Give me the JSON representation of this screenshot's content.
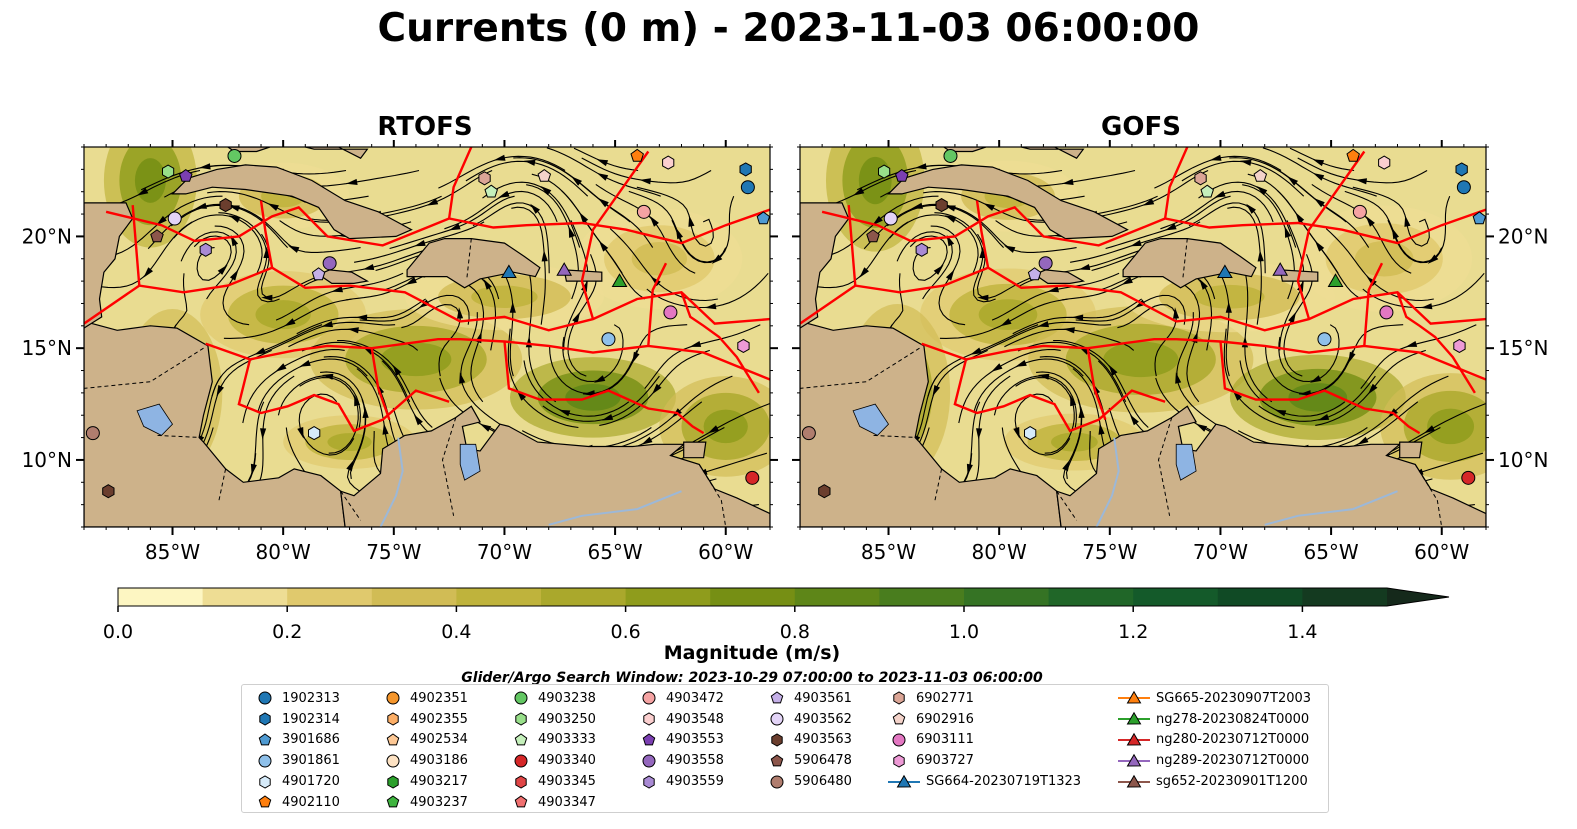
{
  "title": "Currents (0 m) - 2023-11-03 06:00:00",
  "panels": [
    {
      "title": "RTOFS"
    },
    {
      "title": "GOFS"
    }
  ],
  "map": {
    "lon_range": [
      -89,
      -58
    ],
    "lat_range": [
      7,
      24
    ],
    "lon_ticks": [
      {
        "value": -85,
        "label": "85°W"
      },
      {
        "value": -80,
        "label": "80°W"
      },
      {
        "value": -75,
        "label": "75°W"
      },
      {
        "value": -70,
        "label": "70°W"
      },
      {
        "value": -65,
        "label": "65°W"
      },
      {
        "value": -60,
        "label": "60°W"
      }
    ],
    "lat_ticks": [
      {
        "value": 20,
        "label": "20°N"
      },
      {
        "value": 15,
        "label": "15°N"
      },
      {
        "value": 10,
        "label": "10°N"
      }
    ],
    "colors": {
      "land": "#cdb28a",
      "boundaries": "#ff0000",
      "streamlines": "#000000",
      "lakes": "#8eb4e3"
    }
  },
  "colorbar": {
    "label": "Magnitude (m/s)",
    "min": 0.0,
    "max": 1.5,
    "extend": "max",
    "ticks": [
      {
        "value": 0.0,
        "label": "0.0"
      },
      {
        "value": 0.2,
        "label": "0.2"
      },
      {
        "value": 0.4,
        "label": "0.4"
      },
      {
        "value": 0.6,
        "label": "0.6"
      },
      {
        "value": 0.8,
        "label": "0.8"
      },
      {
        "value": 1.0,
        "label": "1.0"
      },
      {
        "value": 1.2,
        "label": "1.2"
      },
      {
        "value": 1.4,
        "label": "1.4"
      }
    ],
    "colors": [
      "#fdf6c2",
      "#eedd94",
      "#e0c96d",
      "#d1bc55",
      "#bfb33c",
      "#aaa82c",
      "#8f9c1c",
      "#768f14",
      "#5e8618",
      "#497d1e",
      "#357324",
      "#206628",
      "#145a2a",
      "#104a25",
      "#143a20",
      "#15291b"
    ]
  },
  "search_window": "Glider/Argo Search Window: 2023-10-29 07:00:00 to 2023-11-03 06:00:00",
  "legend": {
    "columns": [
      [
        {
          "label": "1902313",
          "marker": "circle",
          "color": "#1f77b4"
        },
        {
          "label": "1902314",
          "marker": "hexagon",
          "color": "#1f77b4"
        },
        {
          "label": "3901686",
          "marker": "pentagon",
          "color": "#4e9ad2"
        },
        {
          "label": "3901861",
          "marker": "circle",
          "color": "#8ec0ea"
        },
        {
          "label": "4901720",
          "marker": "hexagon",
          "color": "#d6ebfa"
        },
        {
          "label": "4902110",
          "marker": "pentagon",
          "color": "#ff7f0e"
        }
      ],
      [
        {
          "label": "4902351",
          "marker": "circle",
          "color": "#f5962c"
        },
        {
          "label": "4902355",
          "marker": "hexagon",
          "color": "#fcae66"
        },
        {
          "label": "4902534",
          "marker": "pentagon",
          "color": "#fdc895"
        },
        {
          "label": "4903186",
          "marker": "circle",
          "color": "#fde2c3"
        },
        {
          "label": "4903217",
          "marker": "hexagon",
          "color": "#2ca02c"
        },
        {
          "label": "4903237",
          "marker": "pentagon",
          "color": "#3fb43f"
        }
      ],
      [
        {
          "label": "4903238",
          "marker": "circle",
          "color": "#63c763"
        },
        {
          "label": "4903250",
          "marker": "hexagon",
          "color": "#98df8a"
        },
        {
          "label": "4903333",
          "marker": "pentagon",
          "color": "#c5f0bb"
        },
        {
          "label": "4903340",
          "marker": "circle",
          "color": "#d62728"
        },
        {
          "label": "4903345",
          "marker": "hexagon",
          "color": "#e04546"
        },
        {
          "label": "4903347",
          "marker": "pentagon",
          "color": "#f07070"
        }
      ],
      [
        {
          "label": "4903472",
          "marker": "circle",
          "color": "#f5a3a3"
        },
        {
          "label": "4903548",
          "marker": "hexagon",
          "color": "#fbcfcf"
        },
        {
          "label": "4903553",
          "marker": "pentagon",
          "color": "#7b3fb2"
        },
        {
          "label": "4903558",
          "marker": "circle",
          "color": "#9467bd"
        },
        {
          "label": "4903559",
          "marker": "hexagon",
          "color": "#a98ad4"
        }
      ],
      [
        {
          "label": "4903561",
          "marker": "pentagon",
          "color": "#c5b0e8"
        },
        {
          "label": "4903562",
          "marker": "circle",
          "color": "#e3d4f7"
        },
        {
          "label": "4903563",
          "marker": "hexagon",
          "color": "#6b3e2e"
        },
        {
          "label": "5906478",
          "marker": "pentagon",
          "color": "#8c564b"
        },
        {
          "label": "5906480",
          "marker": "circle",
          "color": "#b07d6e"
        }
      ],
      [
        {
          "label": "6902771",
          "marker": "hexagon",
          "color": "#dba596"
        },
        {
          "label": "6902916",
          "marker": "pentagon",
          "color": "#f4d3ca"
        },
        {
          "label": "6903111",
          "marker": "circle",
          "color": "#e377c2"
        },
        {
          "label": "6903727",
          "marker": "hexagon",
          "color": "#ee9ad6"
        },
        {
          "label": "SG664-20230719T1323",
          "marker": "triangle",
          "color": "#1f77b4",
          "line": true
        }
      ],
      [
        {
          "label": "SG665-20230907T2003",
          "marker": "triangle",
          "color": "#ff7f0e",
          "line": true
        },
        {
          "label": "ng278-20230824T0000",
          "marker": "triangle",
          "color": "#2ca02c",
          "line": true
        },
        {
          "label": "ng280-20230712T0000",
          "marker": "triangle",
          "color": "#d62728",
          "line": true
        },
        {
          "label": "ng289-20230712T0000",
          "marker": "triangle",
          "color": "#9467bd",
          "line": true
        },
        {
          "label": "sg652-20230901T1200",
          "marker": "triangle",
          "color": "#8c564b",
          "line": true
        }
      ]
    ]
  },
  "observations": [
    {
      "id": "3901686",
      "lon": -58.3,
      "lat": 20.8
    },
    {
      "id": "1902314",
      "lon": -59.1,
      "lat": 23.0
    },
    {
      "id": "1902313",
      "lon": -59.0,
      "lat": 22.2
    },
    {
      "id": "4902110",
      "lon": -64.0,
      "lat": 23.6
    },
    {
      "id": "4903548",
      "lon": -62.6,
      "lat": 23.3
    },
    {
      "id": "4903472",
      "lon": -63.7,
      "lat": 21.1
    },
    {
      "id": "6902916",
      "lon": -68.2,
      "lat": 22.7
    },
    {
      "id": "4903333",
      "lon": -70.6,
      "lat": 22.0
    },
    {
      "id": "6902771",
      "lon": -70.9,
      "lat": 22.6
    },
    {
      "id": "4903238",
      "lon": -82.2,
      "lat": 23.6
    },
    {
      "id": "4903250",
      "lon": -85.2,
      "lat": 22.9
    },
    {
      "id": "4903553",
      "lon": -84.4,
      "lat": 22.7
    },
    {
      "id": "4903563",
      "lon": -82.6,
      "lat": 21.4
    },
    {
      "id": "4903562",
      "lon": -84.9,
      "lat": 20.8
    },
    {
      "id": "5906478",
      "lon": -85.7,
      "lat": 20.0
    },
    {
      "id": "4903559",
      "lon": -83.5,
      "lat": 19.4
    },
    {
      "id": "4903561",
      "lon": -78.4,
      "lat": 18.3
    },
    {
      "id": "4903558",
      "lon": -77.9,
      "lat": 18.8
    },
    {
      "id": "SG664-20230719T1323",
      "lon": -69.8,
      "lat": 18.4
    },
    {
      "id": "ng289-20230712T0000",
      "lon": -67.3,
      "lat": 18.5
    },
    {
      "id": "ng278-20230824T0000",
      "lon": -64.8,
      "lat": 18.0
    },
    {
      "id": "6903111",
      "lon": -62.5,
      "lat": 16.6
    },
    {
      "id": "3901861",
      "lon": -65.3,
      "lat": 15.4
    },
    {
      "id": "6903727",
      "lon": -59.2,
      "lat": 15.1
    },
    {
      "id": "4901720",
      "lon": -78.6,
      "lat": 11.2
    },
    {
      "id": "5906480",
      "lon": -88.6,
      "lat": 11.2
    },
    {
      "id": "4903563",
      "lon": -87.9,
      "lat": 8.6
    },
    {
      "id": "4903340",
      "lon": -58.8,
      "lat": 9.2
    }
  ]
}
